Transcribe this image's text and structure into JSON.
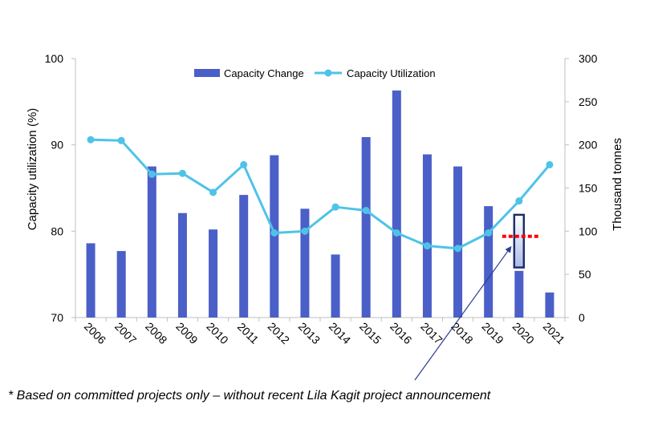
{
  "chart_data": {
    "type": "bar+line",
    "categories": [
      "2006",
      "2007",
      "2008",
      "2009",
      "2010",
      "2011",
      "2012",
      "2013",
      "2014",
      "2015",
      "2016",
      "2017",
      "2018",
      "2019",
      "2020",
      "2021"
    ],
    "series": [
      {
        "name": "Capacity Change",
        "type": "bar",
        "axis": "right",
        "values": [
          86,
          77,
          175,
          121,
          102,
          142,
          188,
          126,
          73,
          209,
          263,
          189,
          175,
          129,
          54,
          29
        ]
      },
      {
        "name": "Capacity Utilization",
        "type": "line",
        "axis": "left",
        "values": [
          90.6,
          90.5,
          86.6,
          86.7,
          84.5,
          87.7,
          79.8,
          80.0,
          82.8,
          82.4,
          79.8,
          78.3,
          78.0,
          79.8,
          83.5,
          87.7
        ]
      }
    ],
    "ylabel_left": "Capacity utilization (%)",
    "ylim_left": [
      70,
      100
    ],
    "yticks_left": [
      "70",
      "80",
      "90",
      "100"
    ],
    "ylabel_right": "Thousand tonnes",
    "ylim_right": [
      0,
      300
    ],
    "yticks_right": [
      "0",
      "50",
      "100",
      "150",
      "200",
      "250",
      "300"
    ],
    "annotations": [
      {
        "type": "outlined-box",
        "category": "2020",
        "range_right": [
          58,
          119
        ],
        "color": "#1f2d6b"
      },
      {
        "type": "dotted-line",
        "category": "2020",
        "value_right": 94,
        "color": "#ff0000"
      },
      {
        "type": "arrow",
        "target_category": "2020",
        "color": "#2b3d94"
      }
    ],
    "legend": "top-center",
    "colors": {
      "bar": "#4a5fc7",
      "line": "#4ec3e8",
      "box": "#1f2d6b",
      "dotted": "#ff0000",
      "arrow": "#2b3d94"
    }
  },
  "footnote": "* Based on committed projects only – without recent Lila Kagit project announcement"
}
